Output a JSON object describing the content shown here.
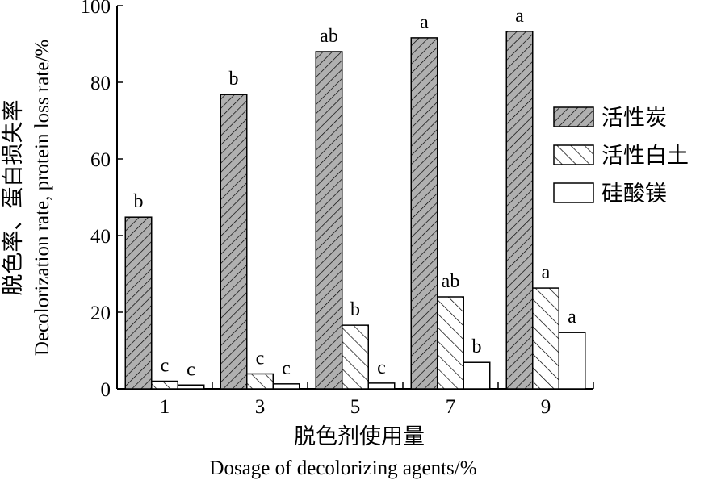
{
  "chart_data": {
    "type": "bar",
    "title": "",
    "categories": [
      "1",
      "3",
      "5",
      "7",
      "9"
    ],
    "series": [
      {
        "name": "活性炭",
        "pattern": "dense-diagonal-gray",
        "values": [
          44.8,
          76.8,
          88.0,
          91.6,
          93.3
        ],
        "labels": [
          "b",
          "b",
          "ab",
          "a",
          "a"
        ]
      },
      {
        "name": "活性白土",
        "pattern": "sparse-backslash",
        "values": [
          2.0,
          3.9,
          16.6,
          24.0,
          26.3
        ],
        "labels": [
          "c",
          "c",
          "b",
          "ab",
          "a"
        ]
      },
      {
        "name": "硅酸镁",
        "pattern": "white",
        "values": [
          1.0,
          1.3,
          1.5,
          6.9,
          14.7
        ],
        "labels": [
          "c",
          "c",
          "c",
          "b",
          "a"
        ]
      }
    ],
    "xlabel": "脱色剂使用量",
    "xlabel_en": "Dosage of decolorizing agents/%",
    "ylabel": "脱色率、蛋白损失率",
    "ylabel_en": "Decolorization rate, protein loss rate/%",
    "ylim": [
      0,
      100
    ],
    "yticks": [
      0,
      20,
      40,
      60,
      80,
      100
    ],
    "legend_position": "right",
    "grid": false,
    "colors": {
      "hatch_fill": "#b0b0b0",
      "stroke": "#000000"
    }
  }
}
